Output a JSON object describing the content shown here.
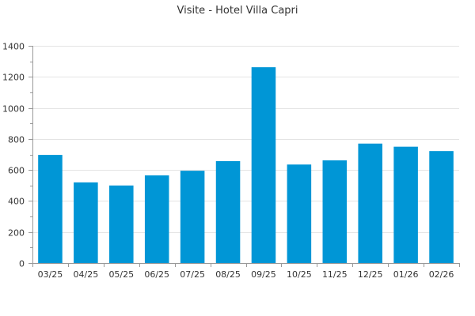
{
  "chart_data": {
    "type": "bar",
    "title": "Visite - Hotel Villa Capri",
    "xlabel": "",
    "ylabel": "",
    "categories": [
      "03/25",
      "04/25",
      "05/25",
      "06/25",
      "07/25",
      "08/25",
      "09/25",
      "10/25",
      "11/25",
      "12/25",
      "01/26",
      "02/26"
    ],
    "values": [
      697,
      520,
      500,
      565,
      595,
      657,
      1262,
      635,
      662,
      770,
      750,
      722
    ],
    "ylim": [
      0,
      1400
    ],
    "yticks": [
      0,
      200,
      400,
      600,
      800,
      1000,
      1200,
      1400
    ],
    "grid": true,
    "bar_color": "#0096d6",
    "legend": "none"
  }
}
